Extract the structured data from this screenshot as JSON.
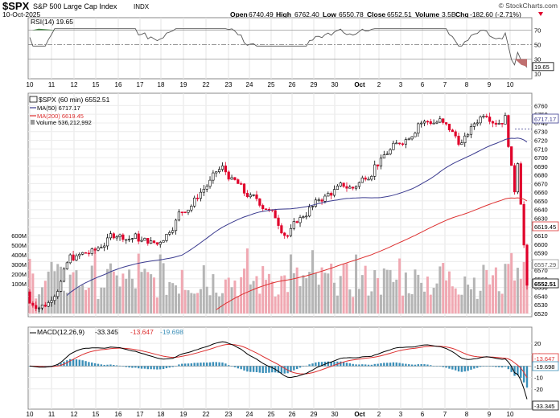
{
  "header": {
    "symbol": "$SPX",
    "name": "S&P 500 Large Cap Index",
    "exchange": "INDX",
    "date": "10-Oct-2025",
    "watermark": "© StockCharts.com",
    "open_label": "Open",
    "open": "6740.49",
    "high_label": "High",
    "high": "6762.40",
    "low_label": "Low",
    "low": "6550.78",
    "close_label": "Close",
    "close": "6552.51",
    "volume_label": "Volume",
    "volume": "3.5B",
    "chg_label": "Chg",
    "chg": "-182.60 (-2.71%)"
  },
  "colors": {
    "up": "#000000",
    "down": "#e0002a",
    "ma50": "#3b3b8f",
    "ma200": "#dd3030",
    "vol_up": "#b5b5b5",
    "vol_down": "#f0a8b2",
    "macd_hist": "#3b8fb8",
    "rsi_fill_high": "#3a7d3a",
    "rsi_fill_low": "#c07070"
  },
  "rsi": {
    "label": "RSI(14) 19.65",
    "last": "19.65",
    "ticks": [
      "70",
      "50",
      "30",
      "10"
    ],
    "upper": 70,
    "lower": 30
  },
  "price": {
    "legend_symbol": "$SPX (60 min) 6552.51",
    "legend_ma50": "MA(50) 6717.17",
    "legend_ma200": "MA(200) 6619.45",
    "legend_volume": "Volume 536,212,992",
    "ticks": [
      "6760",
      "6750",
      "6740",
      "6730",
      "6720",
      "6710",
      "6700",
      "6690",
      "6680",
      "6670",
      "6660",
      "6650",
      "6640",
      "6630",
      "6620",
      "6610",
      "6600",
      "6590",
      "6580",
      "6570",
      "6560",
      "6550",
      "6540",
      "6530",
      "6520"
    ],
    "tag_ma50": "6717.17",
    "tag_ma200": "6619.45",
    "tag_vol": "6557.29",
    "tag_close": "6552.51",
    "vol_ticks": [
      "600M",
      "500M",
      "400M",
      "300M",
      "200M",
      "100M"
    ]
  },
  "macd": {
    "label_prefix": "MACD(12,26,9)",
    "macd_value": "-33.345",
    "signal_value": "-13.647",
    "hist_value": "-19.698",
    "ticks": [
      "20",
      "10",
      "0",
      "-10",
      "-20"
    ],
    "tag_signal": "-13.647",
    "tag_hist": "-19.698",
    "tag_macd": "-33.345"
  },
  "x_axis": {
    "labels": [
      "10",
      "11",
      "12",
      "15",
      "16",
      "17",
      "18",
      "19",
      "22",
      "23",
      "24",
      "25",
      "26",
      "29",
      "30",
      "Oct",
      "2",
      "3",
      "6",
      "7",
      "8",
      "9",
      "10"
    ]
  },
  "chart_data": {
    "type": "candlestick",
    "title": "$SPX S&P 500 Large Cap Index",
    "interval": "60 min",
    "days": [
      "10",
      "11",
      "12",
      "15",
      "16",
      "17",
      "18",
      "19",
      "22",
      "23",
      "24",
      "25",
      "26",
      "29",
      "30",
      "Oct",
      "2",
      "3",
      "6",
      "7",
      "8",
      "9",
      "10"
    ],
    "close_by_day": [
      6532,
      6585,
      6590,
      6612,
      6608,
      6600,
      6635,
      6660,
      6688,
      6660,
      6642,
      6610,
      6640,
      6660,
      6665,
      6690,
      6715,
      6740,
      6742,
      6715,
      6752,
      6745,
      6552
    ],
    "ma50_last": 6717.17,
    "ma200_last": 6619.45,
    "volume_last": 536212992,
    "rsi_last": 19.65,
    "macd_last": -33.345,
    "signal_last": -13.647,
    "hist_last": -19.698,
    "y_range": [
      6520,
      6765
    ]
  }
}
